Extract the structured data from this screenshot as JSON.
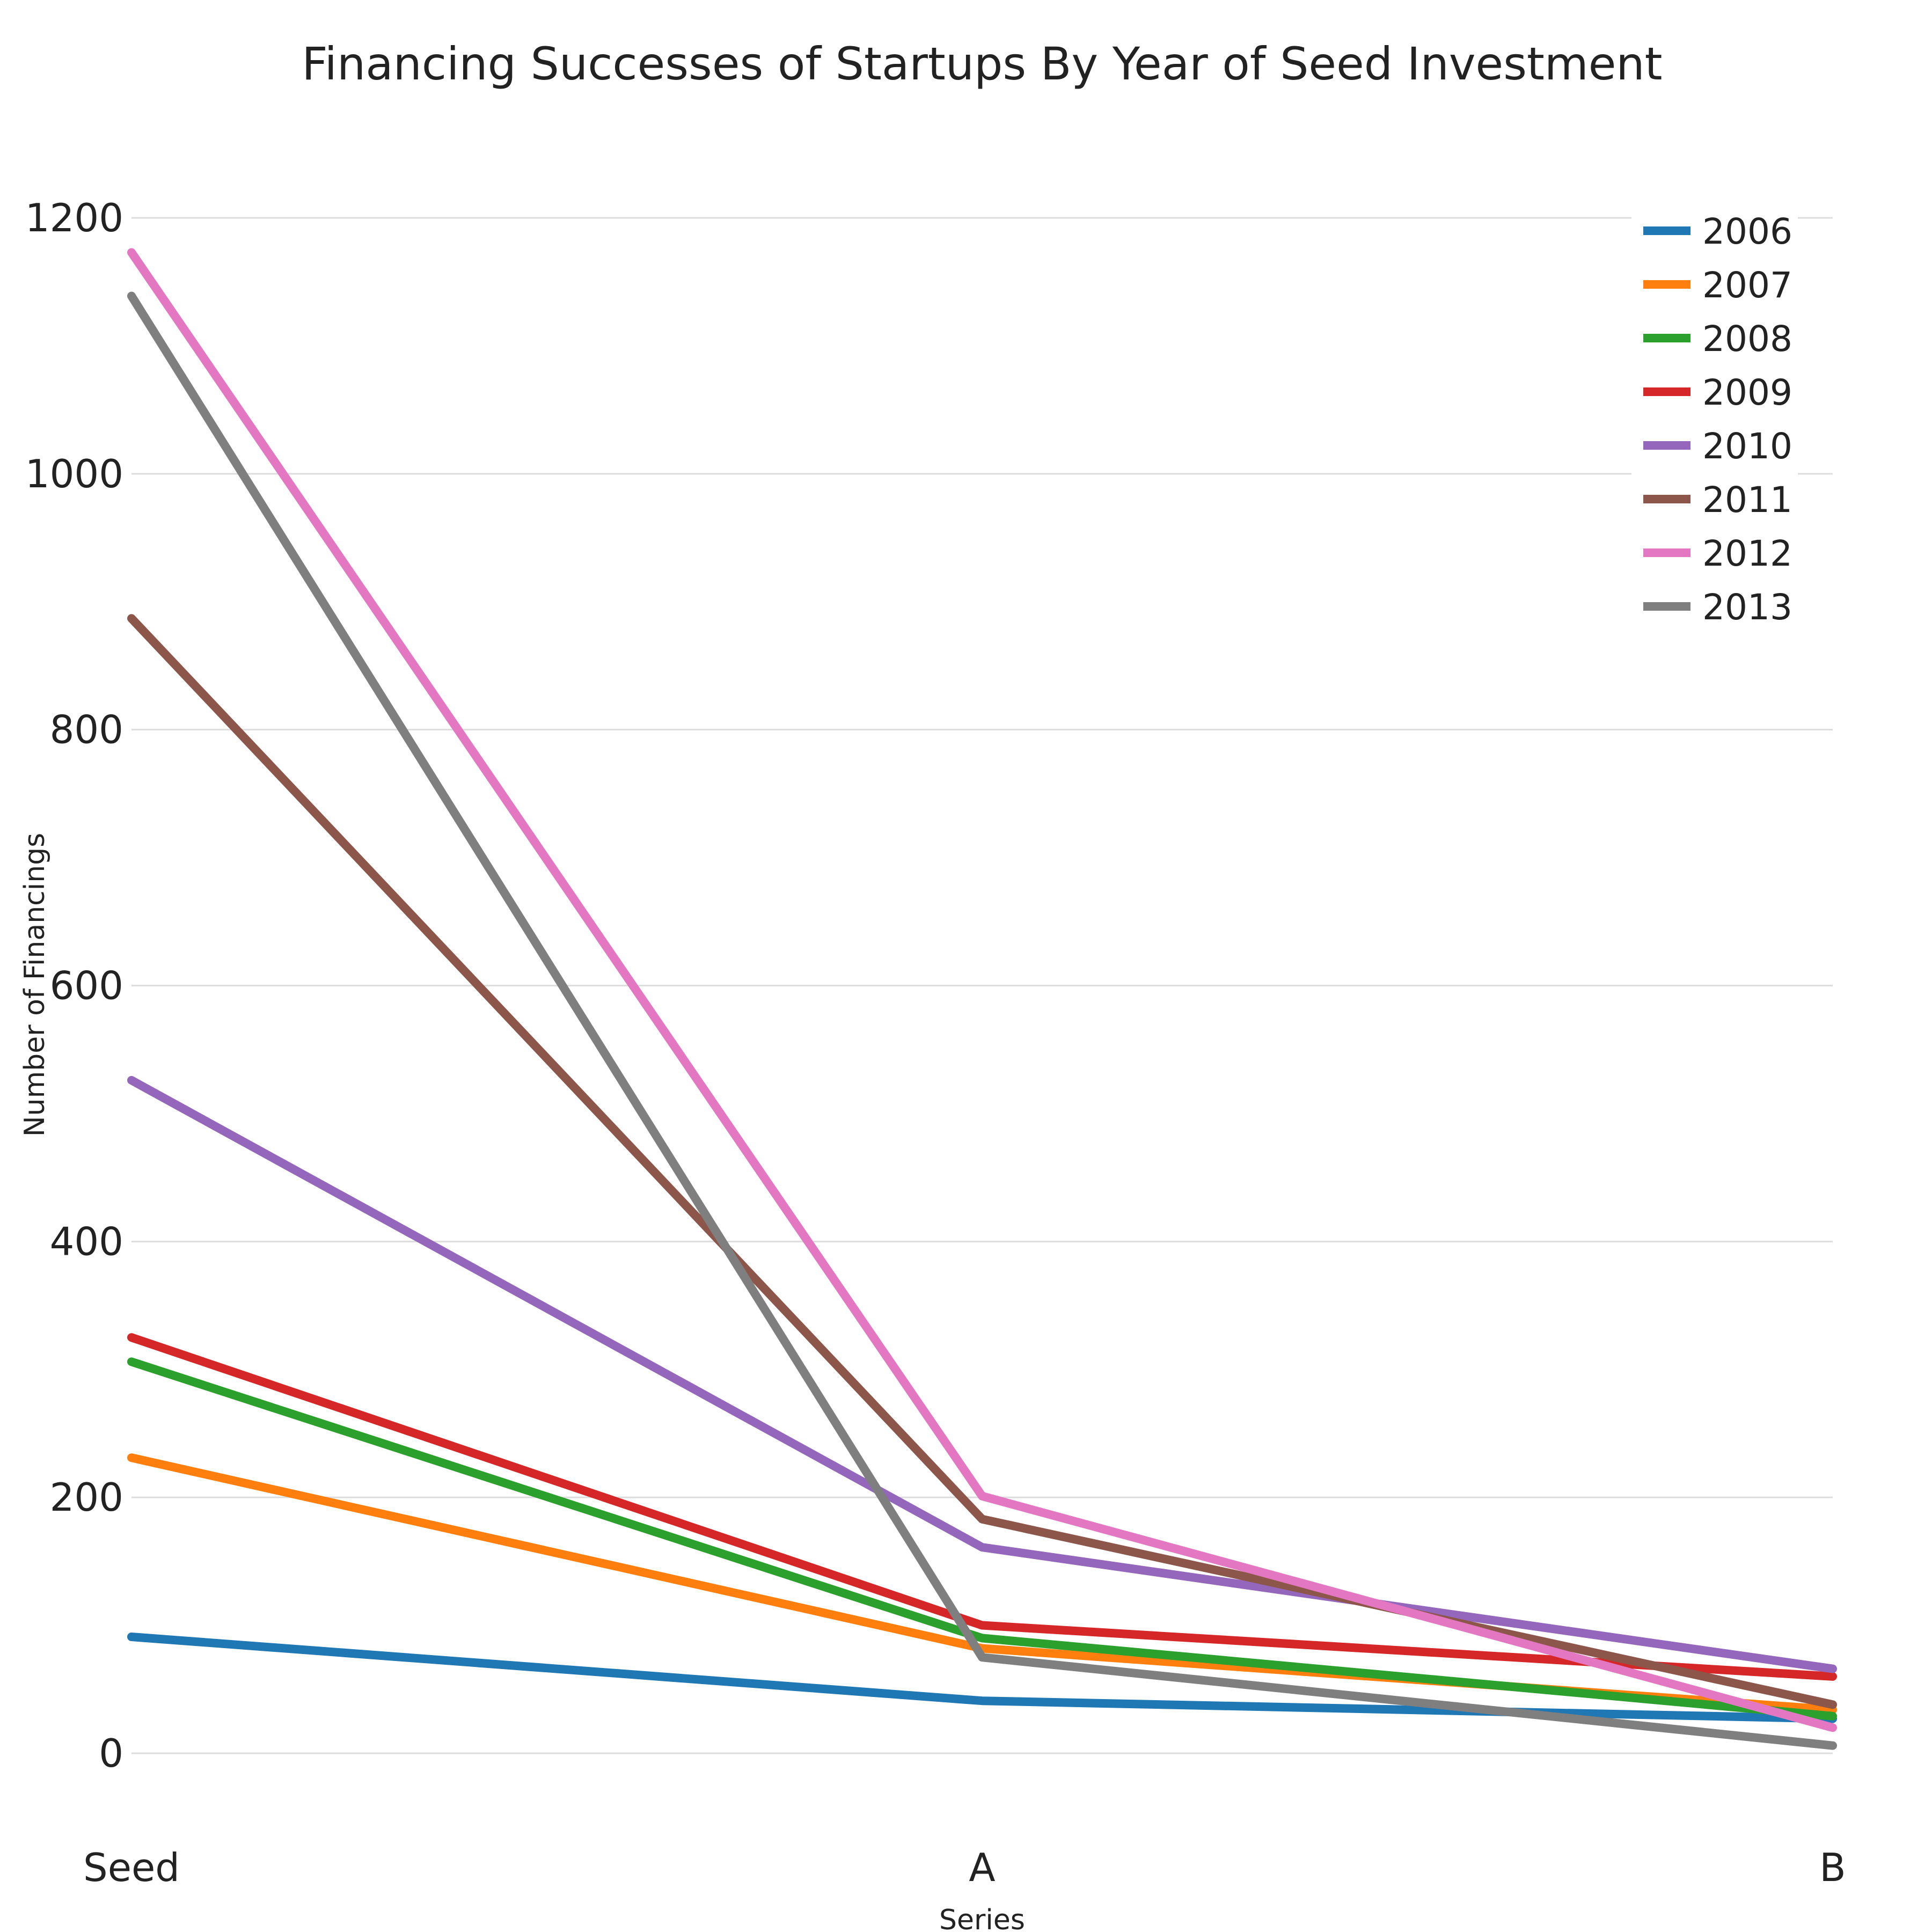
{
  "chart_data": {
    "type": "line",
    "title": "Financing Successes of Startups By Year of Seed Investment",
    "xlabel": "Series",
    "ylabel": "Number of Financings",
    "categories": [
      "Seed",
      "A",
      "B"
    ],
    "ylim": [
      -60,
      1260
    ],
    "yticks": [
      0,
      200,
      400,
      600,
      800,
      1000,
      1200
    ],
    "grid": true,
    "legend_position": "top-right",
    "series": [
      {
        "name": "2006",
        "color": "#1f77b4",
        "values": [
          91,
          41,
          27
        ]
      },
      {
        "name": "2007",
        "color": "#ff7f0e",
        "values": [
          231,
          82,
          34
        ]
      },
      {
        "name": "2008",
        "color": "#2ca02c",
        "values": [
          306,
          90,
          29
        ]
      },
      {
        "name": "2009",
        "color": "#d62728",
        "values": [
          325,
          100,
          60
        ]
      },
      {
        "name": "2010",
        "color": "#9467bd",
        "values": [
          526,
          161,
          66
        ]
      },
      {
        "name": "2011",
        "color": "#8c564b",
        "values": [
          887,
          183,
          38
        ]
      },
      {
        "name": "2012",
        "color": "#e377c2",
        "values": [
          1173,
          201,
          20
        ]
      },
      {
        "name": "2013",
        "color": "#7f7f7f",
        "values": [
          1139,
          75,
          6
        ]
      }
    ]
  }
}
